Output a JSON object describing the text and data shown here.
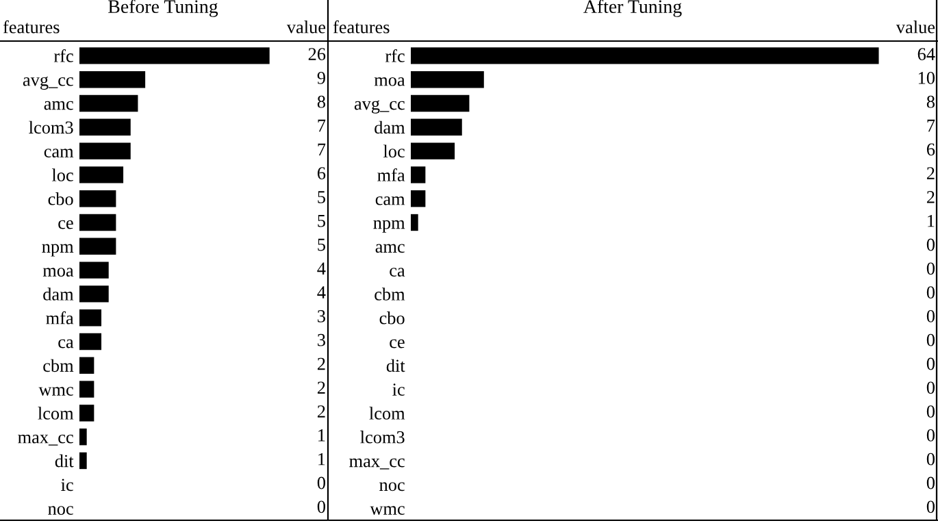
{
  "chart_data": [
    {
      "type": "bar",
      "orientation": "horizontal",
      "title": "Before Tuning",
      "ylabel": "features",
      "xlabel": "value",
      "color": "#000000",
      "data_labels": true,
      "categories": [
        "rfc",
        "avg_cc",
        "amc",
        "lcom3",
        "cam",
        "loc",
        "cbo",
        "ce",
        "npm",
        "moa",
        "dam",
        "mfa",
        "ca",
        "cbm",
        "wmc",
        "lcom",
        "max_cc",
        "dit",
        "ic",
        "noc"
      ],
      "values": [
        26,
        9,
        8,
        7,
        7,
        6,
        5,
        5,
        5,
        4,
        4,
        3,
        3,
        2,
        2,
        2,
        1,
        1,
        0,
        0
      ]
    },
    {
      "type": "bar",
      "orientation": "horizontal",
      "title": "After Tuning",
      "ylabel": "features",
      "xlabel": "value",
      "color": "#000000",
      "data_labels": true,
      "categories": [
        "rfc",
        "moa",
        "avg_cc",
        "dam",
        "loc",
        "mfa",
        "cam",
        "npm",
        "amc",
        "ca",
        "cbm",
        "cbo",
        "ce",
        "dit",
        "ic",
        "lcom",
        "lcom3",
        "max_cc",
        "noc",
        "wmc"
      ],
      "values": [
        64,
        10,
        8,
        7,
        6,
        2,
        2,
        1,
        0,
        0,
        0,
        0,
        0,
        0,
        0,
        0,
        0,
        0,
        0,
        0
      ]
    }
  ]
}
